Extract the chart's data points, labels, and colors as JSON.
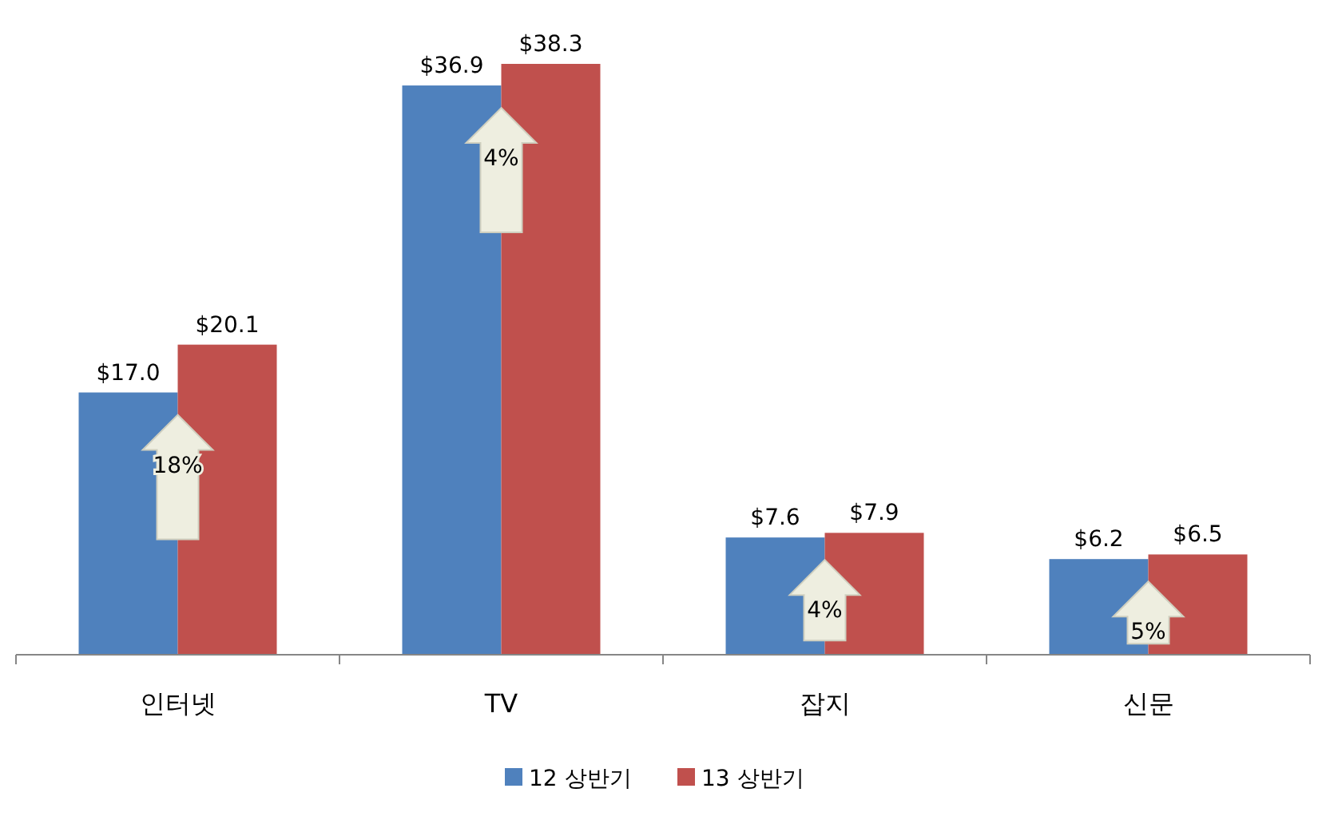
{
  "chart_data": {
    "type": "bar",
    "categories": [
      "인터넷",
      "TV",
      "잡지",
      "신문"
    ],
    "series": [
      {
        "name": "12 상반기",
        "color": "#4f81bd",
        "values": [
          17.0,
          36.9,
          7.6,
          6.2
        ],
        "value_labels": [
          "$17.0",
          "$36.9",
          "$7.6",
          "$6.2"
        ]
      },
      {
        "name": "13 상반기",
        "color": "#c0504d",
        "values": [
          20.1,
          38.3,
          7.9,
          6.5
        ],
        "value_labels": [
          "$20.1",
          "$38.3",
          "$7.9",
          "$6.5"
        ]
      }
    ],
    "annotations": [
      {
        "text": "18%",
        "x": "인터넷"
      },
      {
        "text": "4%",
        "x": "TV"
      },
      {
        "text": "4%",
        "x": "잡지"
      },
      {
        "text": "5%",
        "x": "신문"
      }
    ],
    "legend": "bottom"
  }
}
